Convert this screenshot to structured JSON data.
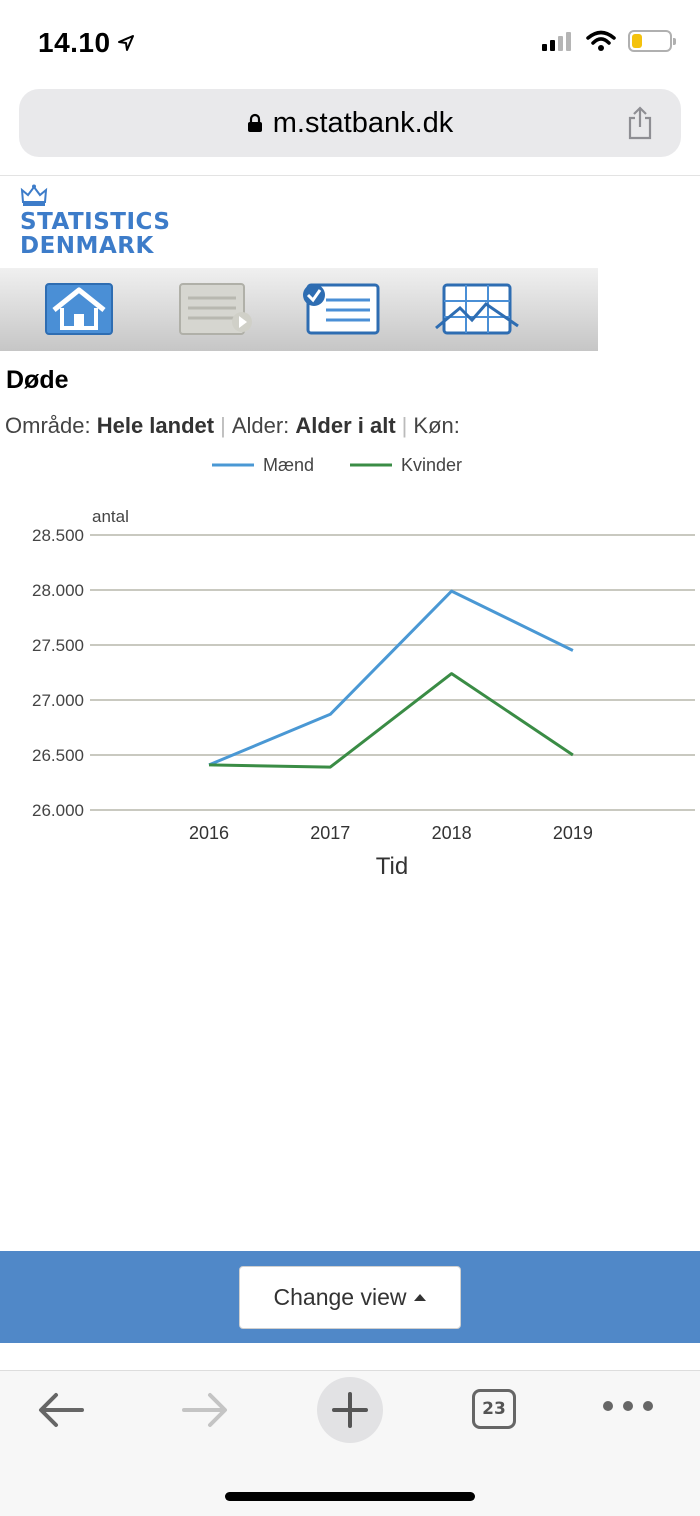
{
  "status": {
    "time": "14.10",
    "icons": [
      "location-arrow-icon",
      "signal-icon",
      "wifi-icon",
      "battery-icon"
    ],
    "battery_color": "#f4c20d"
  },
  "browser": {
    "url": "m.statbank.dk",
    "icons": [
      "lock-icon",
      "share-icon"
    ]
  },
  "logo": {
    "line1": "STATISTICS",
    "line2": "DENMARK",
    "color": "#3d7cc9"
  },
  "nav": {
    "buttons": [
      "home-icon",
      "table-presentation-icon",
      "variable-selection-icon",
      "chart-view-icon"
    ]
  },
  "page": {
    "title": "Døde",
    "filters": [
      {
        "label": "Område:",
        "value": "Hele landet"
      },
      {
        "label": "Alder:",
        "value": "Alder i alt"
      },
      {
        "label": "Køn:",
        "value": ""
      }
    ]
  },
  "chart_data": {
    "type": "line",
    "x": [
      "2016",
      "2017",
      "2018",
      "2019"
    ],
    "series": [
      {
        "name": "Mænd",
        "color": "#4a98d4",
        "values": [
          26410,
          26870,
          27990,
          27450
        ]
      },
      {
        "name": "Kvinder",
        "color": "#3a8c45",
        "values": [
          26410,
          26390,
          27240,
          26500
        ]
      }
    ],
    "ylabel": "antal",
    "xlabel": "Tid",
    "ylim": [
      26000,
      28500
    ],
    "yticks": [
      "26.000",
      "26.500",
      "27.000",
      "27.500",
      "28.000",
      "28.500"
    ],
    "yticks_values": [
      26000,
      26500,
      27000,
      27500,
      28000,
      28500
    ],
    "grid": true,
    "legend": "top-center"
  },
  "change_view": {
    "label": "Change view",
    "bar_color": "#5088c8"
  },
  "toolbar": {
    "tabs_count": "23",
    "icons": [
      "back-arrow-icon",
      "forward-arrow-icon",
      "new-tab-plus-icon",
      "tabs-icon",
      "more-icon"
    ]
  }
}
